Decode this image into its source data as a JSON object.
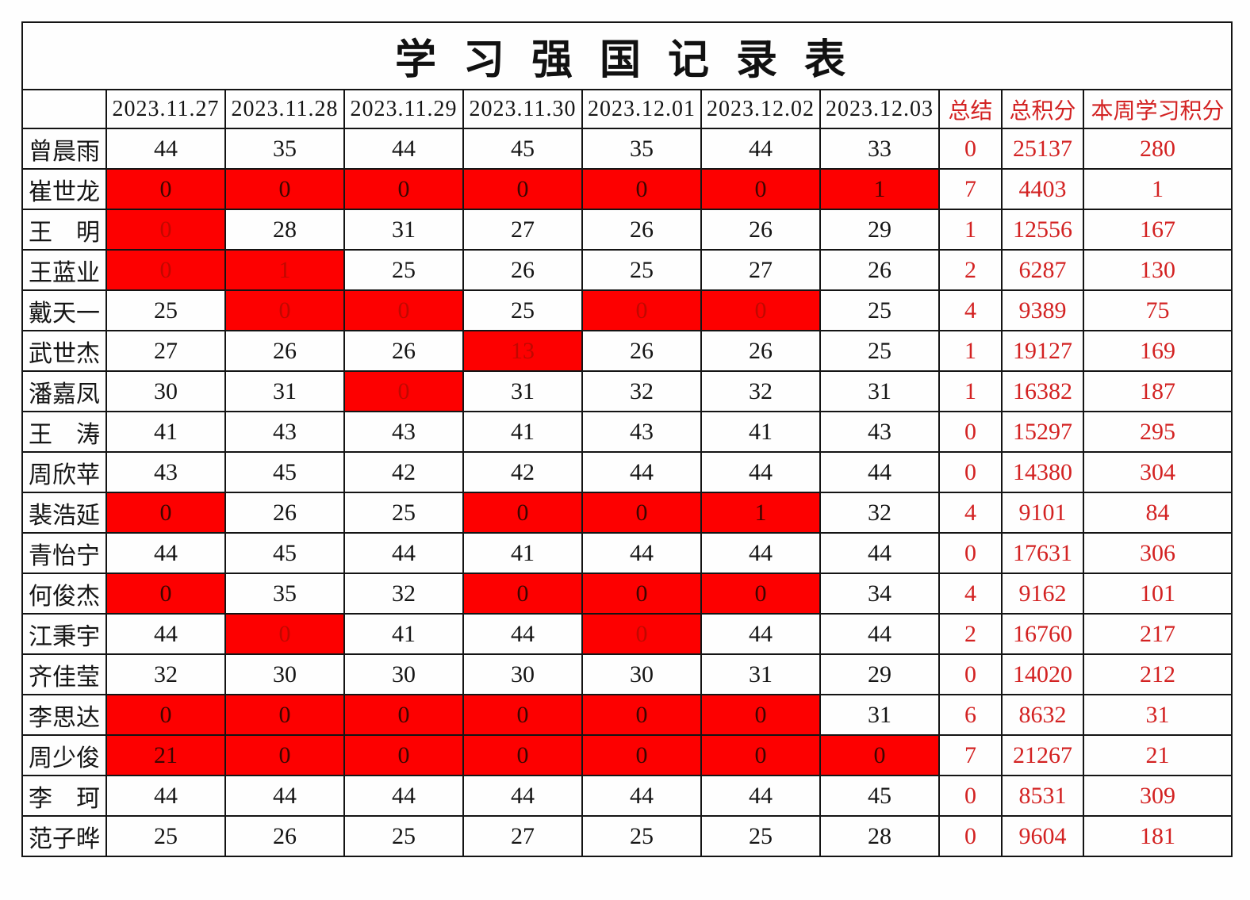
{
  "title": "学习强国记录表",
  "colors": {
    "highlight_cell_fill": "#fd0000",
    "summary_text_red": "#d32222",
    "dark_text_on_red": "#3c0600",
    "dim_text_on_red": "#c00800",
    "body_text": "#151515",
    "grid_line": "#141414"
  },
  "table": {
    "corner_label": "",
    "date_headers": [
      "2023.11.27",
      "2023.11.28",
      "2023.11.29",
      "2023.11.30",
      "2023.12.01",
      "2023.12.02",
      "2023.12.03"
    ],
    "summary_headers": [
      "总结",
      "总积分",
      "本周学习积分"
    ],
    "rows": [
      {
        "name": "曾晨雨",
        "days": [
          {
            "v": "44"
          },
          {
            "v": "35"
          },
          {
            "v": "44"
          },
          {
            "v": "45"
          },
          {
            "v": "35"
          },
          {
            "v": "44"
          },
          {
            "v": "33"
          }
        ],
        "summary": "0",
        "total": "25137",
        "week": "280"
      },
      {
        "name": "崔世龙",
        "days": [
          {
            "v": "0",
            "s": "rd"
          },
          {
            "v": "0",
            "s": "rd"
          },
          {
            "v": "0",
            "s": "rd"
          },
          {
            "v": "0",
            "s": "rd"
          },
          {
            "v": "0",
            "s": "rd"
          },
          {
            "v": "0",
            "s": "rd"
          },
          {
            "v": "1",
            "s": "rd"
          }
        ],
        "summary": "7",
        "total": "4403",
        "week": "1"
      },
      {
        "name": "王　明",
        "days": [
          {
            "v": "0",
            "s": "rm"
          },
          {
            "v": "28"
          },
          {
            "v": "31"
          },
          {
            "v": "27"
          },
          {
            "v": "26"
          },
          {
            "v": "26"
          },
          {
            "v": "29"
          }
        ],
        "summary": "1",
        "total": "12556",
        "week": "167"
      },
      {
        "name": "王蓝业",
        "days": [
          {
            "v": "0",
            "s": "rm"
          },
          {
            "v": "1",
            "s": "rm"
          },
          {
            "v": "25"
          },
          {
            "v": "26"
          },
          {
            "v": "25"
          },
          {
            "v": "27"
          },
          {
            "v": "26"
          }
        ],
        "summary": "2",
        "total": "6287",
        "week": "130"
      },
      {
        "name": "戴天一",
        "days": [
          {
            "v": "25"
          },
          {
            "v": "0",
            "s": "rm"
          },
          {
            "v": "0",
            "s": "rm"
          },
          {
            "v": "25"
          },
          {
            "v": "0",
            "s": "rm"
          },
          {
            "v": "0",
            "s": "rm"
          },
          {
            "v": "25"
          }
        ],
        "summary": "4",
        "total": "9389",
        "week": "75"
      },
      {
        "name": "武世杰",
        "days": [
          {
            "v": "27"
          },
          {
            "v": "26"
          },
          {
            "v": "26"
          },
          {
            "v": "13",
            "s": "rm"
          },
          {
            "v": "26"
          },
          {
            "v": "26"
          },
          {
            "v": "25"
          }
        ],
        "summary": "1",
        "total": "19127",
        "week": "169"
      },
      {
        "name": "潘嘉凤",
        "days": [
          {
            "v": "30"
          },
          {
            "v": "31"
          },
          {
            "v": "0",
            "s": "rm"
          },
          {
            "v": "31"
          },
          {
            "v": "32"
          },
          {
            "v": "32"
          },
          {
            "v": "31"
          }
        ],
        "summary": "1",
        "total": "16382",
        "week": "187"
      },
      {
        "name": "王　涛",
        "days": [
          {
            "v": "41"
          },
          {
            "v": "43"
          },
          {
            "v": "43"
          },
          {
            "v": "41"
          },
          {
            "v": "43"
          },
          {
            "v": "41"
          },
          {
            "v": "43"
          }
        ],
        "summary": "0",
        "total": "15297",
        "week": "295"
      },
      {
        "name": "周欣苹",
        "days": [
          {
            "v": "43"
          },
          {
            "v": "45"
          },
          {
            "v": "42"
          },
          {
            "v": "42"
          },
          {
            "v": "44"
          },
          {
            "v": "44"
          },
          {
            "v": "44"
          }
        ],
        "summary": "0",
        "total": "14380",
        "week": "304"
      },
      {
        "name": "裴浩延",
        "days": [
          {
            "v": "0",
            "s": "rd"
          },
          {
            "v": "26"
          },
          {
            "v": "25"
          },
          {
            "v": "0",
            "s": "rd"
          },
          {
            "v": "0",
            "s": "rd"
          },
          {
            "v": "1",
            "s": "rd"
          },
          {
            "v": "32"
          }
        ],
        "summary": "4",
        "total": "9101",
        "week": "84"
      },
      {
        "name": "青怡宁",
        "days": [
          {
            "v": "44"
          },
          {
            "v": "45"
          },
          {
            "v": "44"
          },
          {
            "v": "41"
          },
          {
            "v": "44"
          },
          {
            "v": "44"
          },
          {
            "v": "44"
          }
        ],
        "summary": "0",
        "total": "17631",
        "week": "306"
      },
      {
        "name": "何俊杰",
        "days": [
          {
            "v": "0",
            "s": "rd"
          },
          {
            "v": "35"
          },
          {
            "v": "32"
          },
          {
            "v": "0",
            "s": "rd"
          },
          {
            "v": "0",
            "s": "rd"
          },
          {
            "v": "0",
            "s": "rd"
          },
          {
            "v": "34"
          }
        ],
        "summary": "4",
        "total": "9162",
        "week": "101"
      },
      {
        "name": "江秉宇",
        "days": [
          {
            "v": "44"
          },
          {
            "v": "0",
            "s": "rm"
          },
          {
            "v": "41"
          },
          {
            "v": "44"
          },
          {
            "v": "0",
            "s": "rm"
          },
          {
            "v": "44"
          },
          {
            "v": "44"
          }
        ],
        "summary": "2",
        "total": "16760",
        "week": "217"
      },
      {
        "name": "齐佳莹",
        "days": [
          {
            "v": "32"
          },
          {
            "v": "30"
          },
          {
            "v": "30"
          },
          {
            "v": "30"
          },
          {
            "v": "30"
          },
          {
            "v": "31"
          },
          {
            "v": "29"
          }
        ],
        "summary": "0",
        "total": "14020",
        "week": "212"
      },
      {
        "name": "李思达",
        "days": [
          {
            "v": "0",
            "s": "rd"
          },
          {
            "v": "0",
            "s": "rd"
          },
          {
            "v": "0",
            "s": "rd"
          },
          {
            "v": "0",
            "s": "rd"
          },
          {
            "v": "0",
            "s": "rd"
          },
          {
            "v": "0",
            "s": "rd"
          },
          {
            "v": "31"
          }
        ],
        "summary": "6",
        "total": "8632",
        "week": "31"
      },
      {
        "name": "周少俊",
        "days": [
          {
            "v": "21",
            "s": "rd"
          },
          {
            "v": "0",
            "s": "rd"
          },
          {
            "v": "0",
            "s": "rd"
          },
          {
            "v": "0",
            "s": "rd"
          },
          {
            "v": "0",
            "s": "rd"
          },
          {
            "v": "0",
            "s": "rd"
          },
          {
            "v": "0",
            "s": "rd"
          }
        ],
        "summary": "7",
        "total": "21267",
        "week": "21"
      },
      {
        "name": "李　珂",
        "days": [
          {
            "v": "44"
          },
          {
            "v": "44"
          },
          {
            "v": "44"
          },
          {
            "v": "44"
          },
          {
            "v": "44"
          },
          {
            "v": "44"
          },
          {
            "v": "45"
          }
        ],
        "summary": "0",
        "total": "8531",
        "week": "309"
      },
      {
        "name": "范子晔",
        "days": [
          {
            "v": "25"
          },
          {
            "v": "26"
          },
          {
            "v": "25"
          },
          {
            "v": "27"
          },
          {
            "v": "25"
          },
          {
            "v": "25"
          },
          {
            "v": "28"
          }
        ],
        "summary": "0",
        "total": "9604",
        "week": "181"
      }
    ]
  }
}
